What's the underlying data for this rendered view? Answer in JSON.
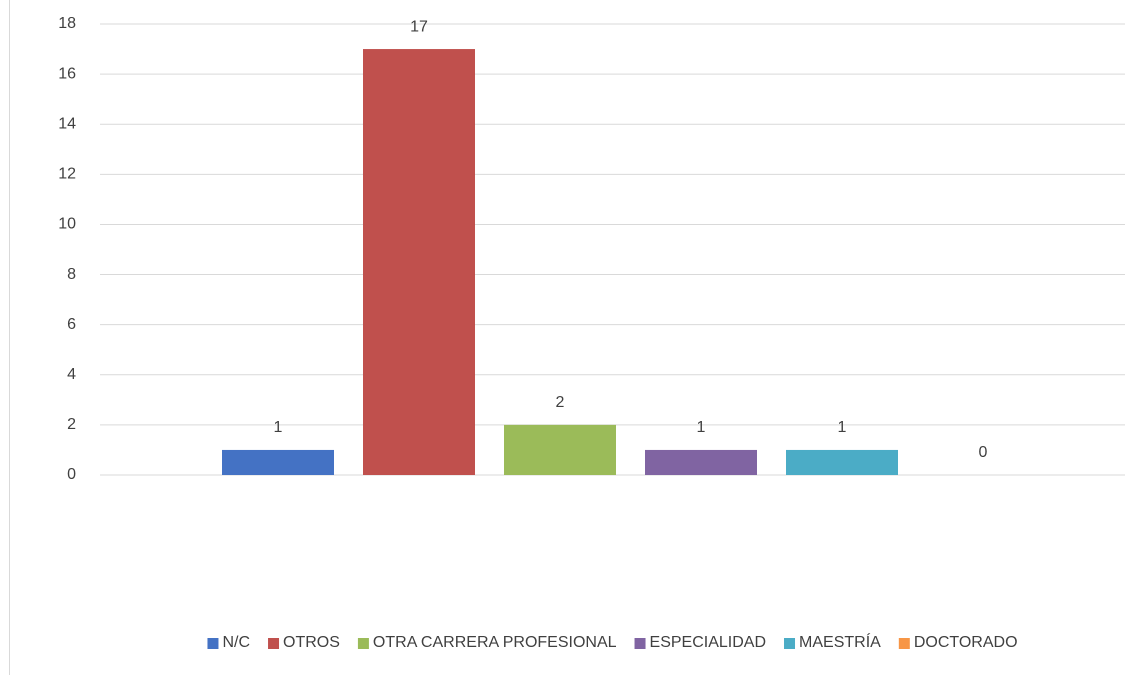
{
  "chart_data": {
    "type": "bar",
    "series": [
      {
        "name": "N/C",
        "color": "#4472c4",
        "values": [
          1
        ]
      },
      {
        "name": "OTROS",
        "color": "#c0504d",
        "values": [
          17
        ]
      },
      {
        "name": "OTRA CARRERA PROFESIONAL",
        "color": "#9bbb59",
        "values": [
          2
        ]
      },
      {
        "name": "ESPECIALIDAD",
        "color": "#8064a2",
        "values": [
          1
        ]
      },
      {
        "name": "MAESTRÍA",
        "color": "#4bacc6",
        "values": [
          1
        ]
      },
      {
        "name": "DOCTORADO",
        "color": "#f79646",
        "values": [
          0
        ]
      }
    ],
    "ylim": [
      0,
      18
    ],
    "yticks": [
      0,
      2,
      4,
      6,
      8,
      10,
      12,
      14,
      16,
      18
    ],
    "grid": true,
    "legend": "bottom"
  }
}
